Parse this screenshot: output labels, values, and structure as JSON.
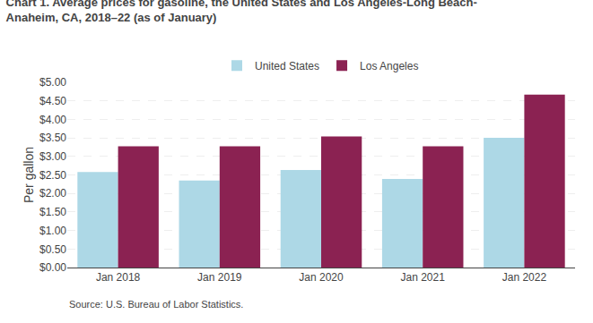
{
  "chart_data": {
    "type": "bar",
    "title": "Chart 1. Average prices for gasoline, the United States and Los Angeles-Long Beach-\nAnaheim, CA, 2018–22 (as of January)",
    "y_label": "Per gallon",
    "annotations": [
      "Source: U.S. Bureau of Labor Statistics."
    ],
    "categories": [
      "Jan 2018",
      "Jan 2019",
      "Jan 2020",
      "Jan 2021",
      "Jan 2022"
    ],
    "series": [
      {
        "name": "United States",
        "color": "#add8e6",
        "values": [
          2.58,
          2.35,
          2.63,
          2.39,
          3.5
        ]
      },
      {
        "name": "Los Angeles",
        "color": "#8b2252",
        "values": [
          3.27,
          3.27,
          3.54,
          3.27,
          4.67
        ]
      }
    ],
    "ylim": [
      0,
      5.0
    ],
    "yticks": [
      {
        "value": 0.0,
        "label": "$0.00"
      },
      {
        "value": 0.5,
        "label": "$0.50"
      },
      {
        "value": 1.0,
        "label": "$1.00"
      },
      {
        "value": 1.5,
        "label": "$1.50"
      },
      {
        "value": 2.0,
        "label": "$2.00"
      },
      {
        "value": 2.5,
        "label": "$2.50"
      },
      {
        "value": 3.0,
        "label": "$3.00"
      },
      {
        "value": 3.5,
        "label": "$3.50"
      },
      {
        "value": 4.0,
        "label": "$4.00"
      },
      {
        "value": 4.5,
        "label": "$4.50"
      },
      {
        "value": 5.0,
        "label": "$5.00"
      }
    ],
    "grid": true,
    "legend": "top"
  }
}
